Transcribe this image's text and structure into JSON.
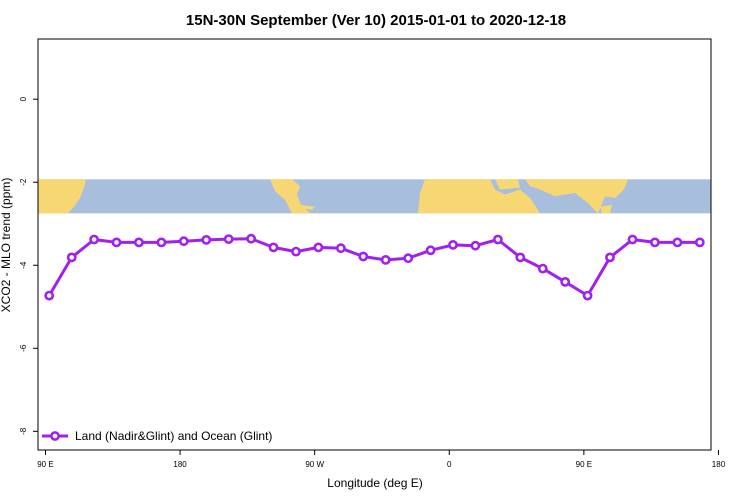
{
  "chart_data": {
    "type": "line",
    "title": "15N-30N September (Ver 10)   2015-01-01 to 2020-12-18",
    "xlabel": "Longitude (deg E)",
    "ylabel": "XCO2 - MLO trend (ppm)",
    "xlim": [
      85,
      535
    ],
    "ylim": [
      -8.45,
      1.45
    ],
    "x_ticks": [
      {
        "value": 90,
        "label": "90 E"
      },
      {
        "value": 180,
        "label": "180"
      },
      {
        "value": 270,
        "label": "90 W"
      },
      {
        "value": 360,
        "label": "0"
      },
      {
        "value": 450,
        "label": "90 E"
      },
      {
        "value": 540,
        "label": "180"
      }
    ],
    "y_ticks": [
      {
        "value": 0,
        "label": "0"
      },
      {
        "value": -2,
        "label": "-2"
      },
      {
        "value": -4,
        "label": "-4"
      },
      {
        "value": -6,
        "label": "-6"
      },
      {
        "value": -8,
        "label": "-8"
      }
    ],
    "map_strip": {
      "ymin": -2.75,
      "ymax": -1.93,
      "ocean_color": "#a8bedd",
      "land_color": "#f7d774"
    },
    "series": [
      {
        "name": "Land (Nadir&Glint) and Ocean (Glint)",
        "color": "#a020f0",
        "x": [
          92.5,
          107.5,
          122.5,
          137.5,
          152.5,
          167.5,
          182.5,
          197.5,
          212.5,
          227.5,
          242.5,
          257.5,
          272.5,
          287.5,
          302.5,
          317.5,
          332.5,
          347.5,
          362.5,
          377.5,
          392.5,
          407.5,
          422.5,
          437.5,
          452.5,
          467.5,
          482.5,
          497.5,
          512.5,
          527.5
        ],
        "y": [
          -4.73,
          -3.81,
          -3.38,
          -3.45,
          -3.45,
          -3.45,
          -3.42,
          -3.39,
          -3.37,
          -3.36,
          -3.57,
          -3.67,
          -3.57,
          -3.59,
          -3.79,
          -3.87,
          -3.83,
          -3.64,
          -3.51,
          -3.53,
          -3.38,
          -3.81,
          -4.08,
          -4.4,
          -4.73,
          -3.81,
          -3.38,
          -3.45,
          -3.45,
          -3.45
        ]
      }
    ],
    "legend": {
      "position": "bottom-left"
    },
    "grid": false
  }
}
